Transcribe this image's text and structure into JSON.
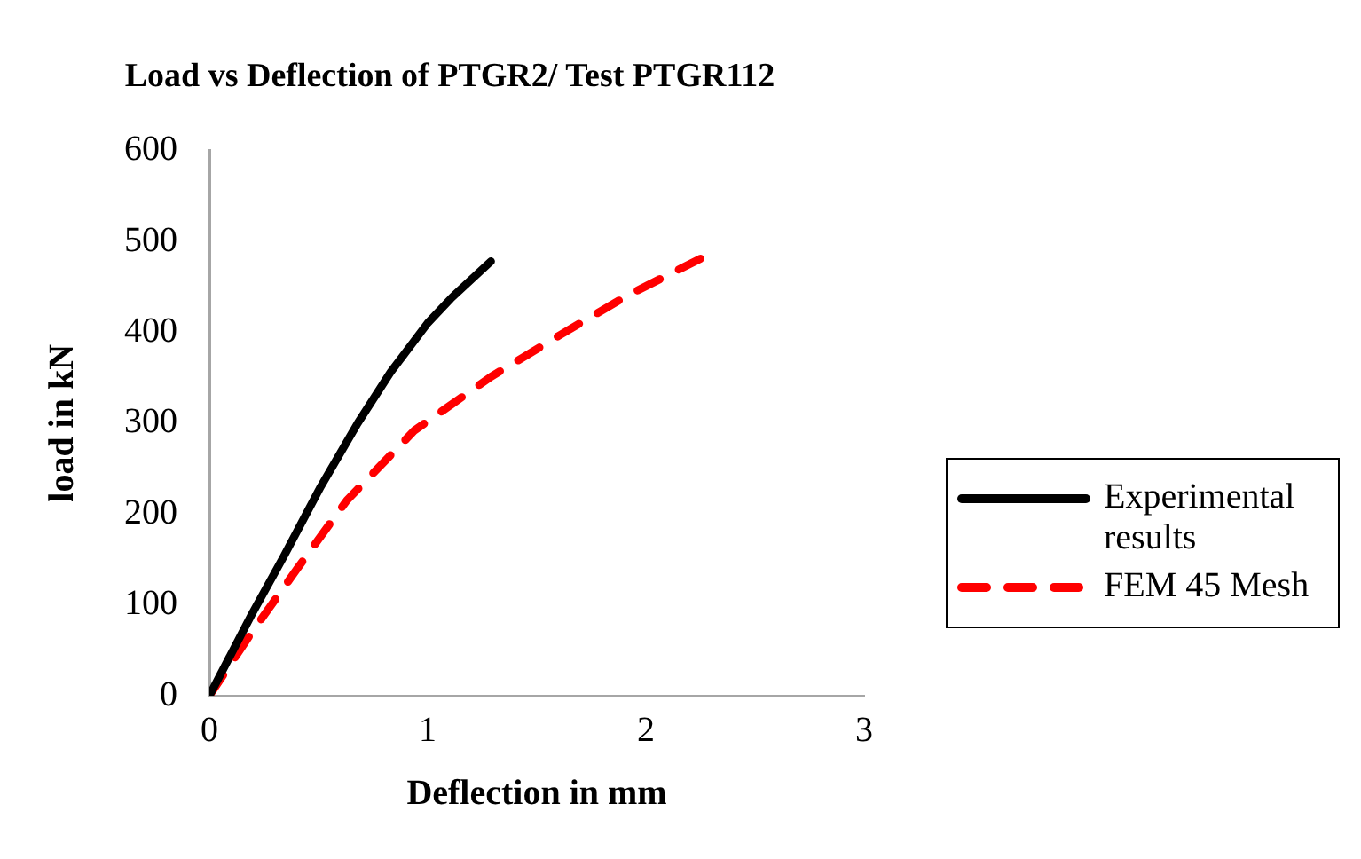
{
  "chart_data": {
    "type": "line",
    "title": "Load vs Deflection of PTGR2/ Test PTGR112",
    "xlabel": "Deflection in mm",
    "ylabel": "load in kN",
    "xlim": [
      0,
      3
    ],
    "xticks": [
      0,
      1,
      2,
      3
    ],
    "ylim": [
      0,
      600
    ],
    "yticks": [
      0,
      100,
      200,
      300,
      400,
      500,
      600
    ],
    "grid": false,
    "legend": "right",
    "marker": "none",
    "series": [
      {
        "name": "Experimental results",
        "color": "#000000",
        "line_style": "solid",
        "x": [
          0,
          0.195,
          0.34,
          0.51,
          0.68,
          0.83,
          1.0,
          1.11,
          1.29
        ],
        "values": [
          0,
          90,
          153,
          230,
          300,
          356,
          410,
          438,
          478
        ]
      },
      {
        "name": "FEM 45 Mesh",
        "color": "#ff0000",
        "line_style": "dashed",
        "x": [
          0,
          0.195,
          0.4,
          0.63,
          0.94,
          1.29,
          1.6,
          1.92,
          2.25
        ],
        "values": [
          0,
          70,
          139,
          215,
          292,
          351,
          396,
          441,
          481
        ]
      }
    ]
  }
}
